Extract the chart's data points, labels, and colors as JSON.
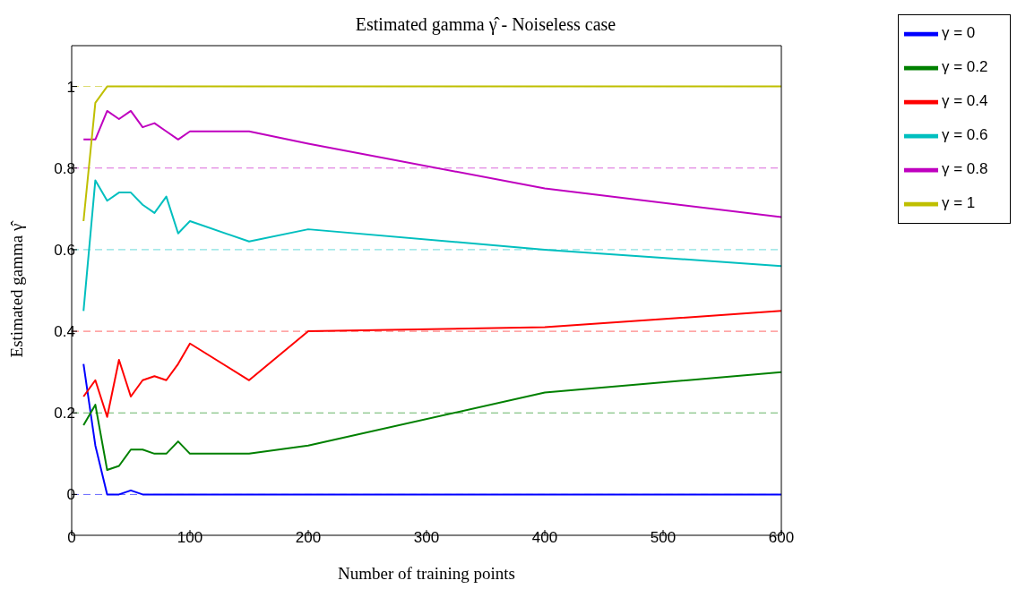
{
  "chart_data": {
    "type": "line",
    "title": "Estimated gamma γ̂ - Noiseless case",
    "xlabel": "Number of training points",
    "ylabel": "Estimated gamma γ̂",
    "x": [
      10,
      20,
      30,
      40,
      50,
      60,
      70,
      80,
      90,
      100,
      150,
      200,
      400,
      600
    ],
    "series": [
      {
        "name": "γ = 0",
        "color": "#0000ff",
        "values": [
          0.32,
          0.12,
          0,
          0,
          0.01,
          0,
          0,
          0,
          0,
          0,
          0,
          0,
          0,
          0
        ]
      },
      {
        "name": "γ = 0.2",
        "color": "#008000",
        "values": [
          0.17,
          0.22,
          0.06,
          0.07,
          0.11,
          0.11,
          0.1,
          0.1,
          0.13,
          0.1,
          0.1,
          0.12,
          0.25,
          0.3
        ]
      },
      {
        "name": "γ = 0.4",
        "color": "#ff0000",
        "values": [
          0.24,
          0.28,
          0.19,
          0.33,
          0.24,
          0.28,
          0.29,
          0.28,
          0.32,
          0.37,
          0.28,
          0.4,
          0.41,
          0.45
        ]
      },
      {
        "name": "γ = 0.6",
        "color": "#00bfbf",
        "values": [
          0.45,
          0.77,
          0.72,
          0.74,
          0.74,
          0.71,
          0.69,
          0.73,
          0.64,
          0.67,
          0.62,
          0.65,
          0.6,
          0.56
        ]
      },
      {
        "name": "γ = 0.8",
        "color": "#bf00bf",
        "values": [
          0.87,
          0.87,
          0.94,
          0.92,
          0.94,
          0.9,
          0.91,
          0.89,
          0.87,
          0.89,
          0.89,
          0.86,
          0.75,
          0.68
        ]
      },
      {
        "name": "γ = 1",
        "color": "#bfbf00",
        "values": [
          0.67,
          0.96,
          1,
          1,
          1,
          1,
          1,
          1,
          1,
          1,
          1,
          1,
          1,
          1
        ]
      }
    ],
    "ref_lines": [
      {
        "axis": "y",
        "value": 0,
        "color": "#0000ff",
        "line_style": "dashed"
      },
      {
        "axis": "y",
        "value": 0.2,
        "color": "#008000",
        "line_style": "dashed"
      },
      {
        "axis": "y",
        "value": 0.4,
        "color": "#ff0000",
        "line_style": "dashed"
      },
      {
        "axis": "y",
        "value": 0.6,
        "color": "#00bfbf",
        "line_style": "dashed"
      },
      {
        "axis": "y",
        "value": 0.8,
        "color": "#bf00bf",
        "line_style": "dashed"
      },
      {
        "axis": "y",
        "value": 1,
        "color": "#bfbf00",
        "line_style": "dashed"
      }
    ],
    "xlim": [
      0,
      600
    ],
    "xticks": [
      0,
      100,
      200,
      300,
      400,
      500,
      600
    ],
    "ylim": [
      -0.1,
      1.1
    ],
    "yticks": [
      0,
      0.2,
      0.4,
      0.6,
      0.8,
      1
    ],
    "grid": false,
    "legend": "top right",
    "marker": "none",
    "line_style": "solid"
  }
}
